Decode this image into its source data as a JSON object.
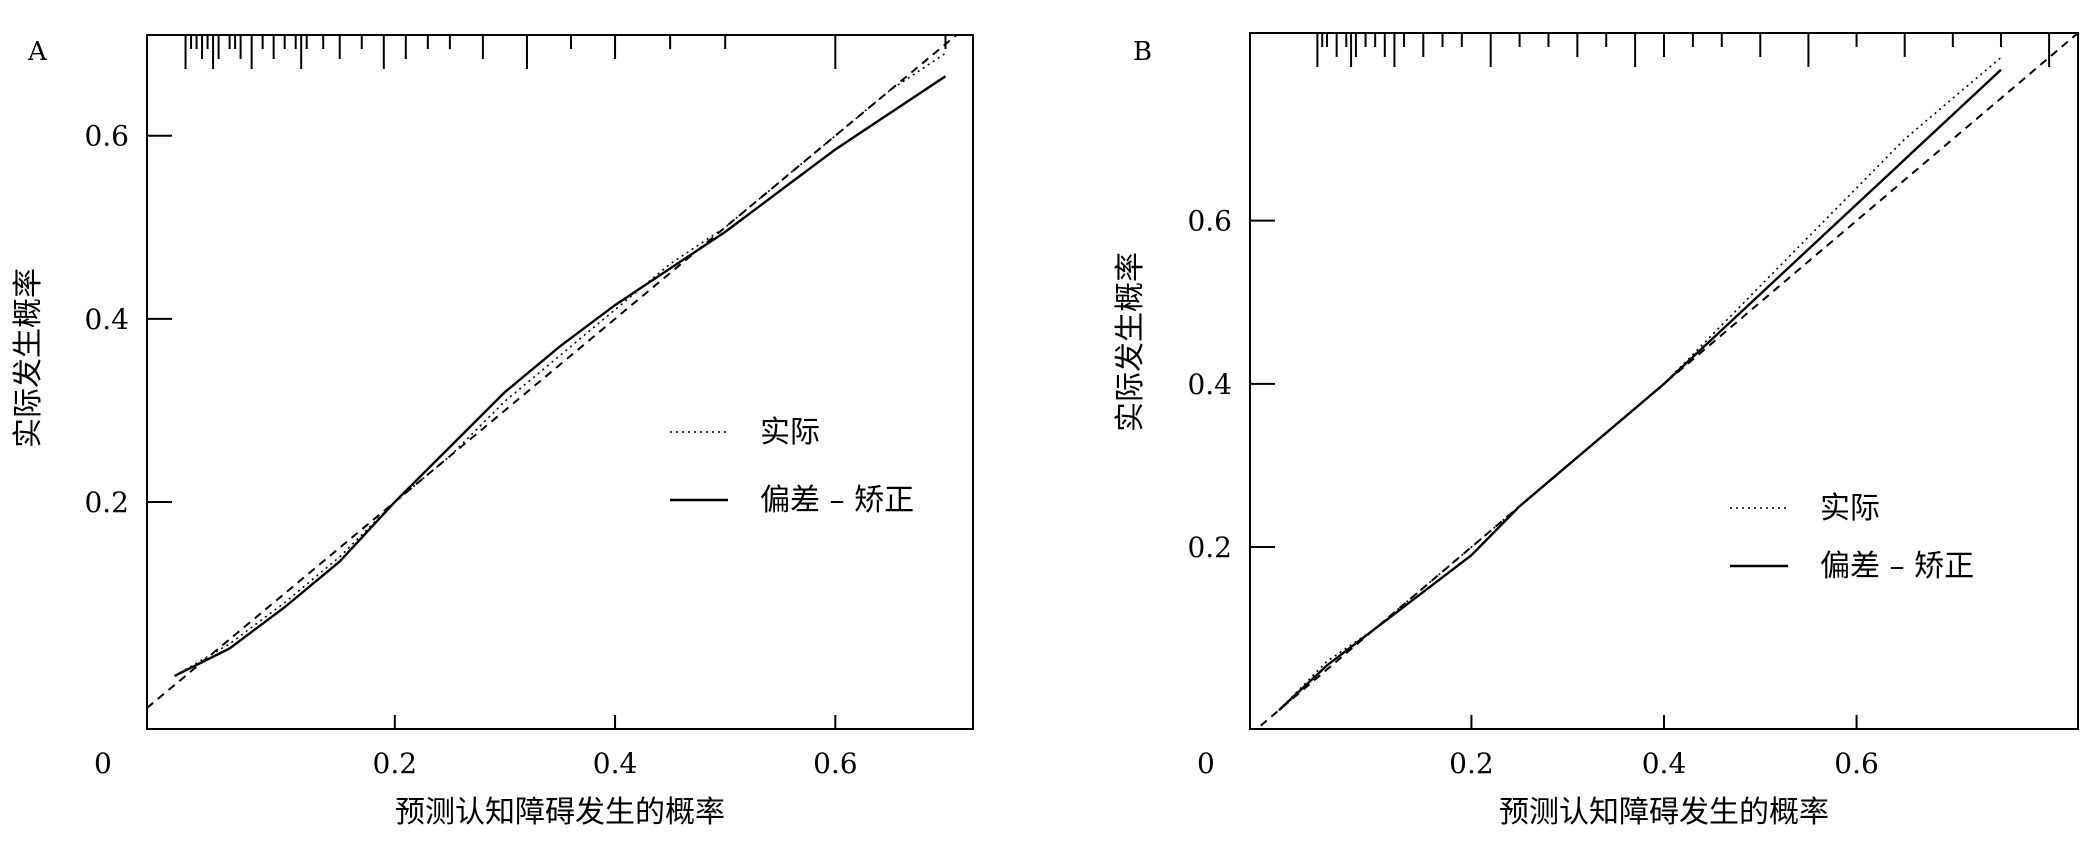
{
  "chart_data": [
    {
      "panel_label": "A",
      "type": "line",
      "xlabel": "预测认知障碍发生的概率",
      "ylabel": "实际发生概率",
      "origin_label": "0",
      "xlim": [
        -0.025,
        0.725
      ],
      "ylim": [
        -0.048,
        0.71
      ],
      "x_ticks": [
        0.2,
        0.4,
        0.6
      ],
      "x_tick_labels": [
        "0.2",
        "0.4",
        "0.6"
      ],
      "y_ticks": [
        0.2,
        0.4,
        0.6
      ],
      "y_tick_labels": [
        "0.2",
        "0.4",
        "0.6"
      ],
      "grid": false,
      "legend_position": "center-right",
      "series": [
        {
          "name": "实际",
          "style": "dotted",
          "x": [
            0.0,
            0.05,
            0.1,
            0.15,
            0.2,
            0.25,
            0.3,
            0.35,
            0.4,
            0.45,
            0.5,
            0.55,
            0.6,
            0.65,
            0.7
          ],
          "y": [
            0.01,
            0.045,
            0.09,
            0.14,
            0.2,
            0.25,
            0.31,
            0.36,
            0.41,
            0.46,
            0.5,
            0.55,
            0.6,
            0.65,
            0.69
          ]
        },
        {
          "name": "偏差 – 矫正",
          "style": "solid",
          "x": [
            0.0,
            0.05,
            0.1,
            0.15,
            0.2,
            0.25,
            0.3,
            0.35,
            0.4,
            0.45,
            0.5,
            0.55,
            0.6,
            0.65,
            0.7
          ],
          "y": [
            0.01,
            0.04,
            0.085,
            0.135,
            0.2,
            0.26,
            0.32,
            0.37,
            0.415,
            0.455,
            0.495,
            0.54,
            0.585,
            0.625,
            0.665
          ]
        }
      ],
      "reference_line": {
        "style": "dashed",
        "slope": 1,
        "intercept": 0
      },
      "rug": [
        0.01,
        0.015,
        0.02,
        0.025,
        0.03,
        0.035,
        0.04,
        0.05,
        0.055,
        0.06,
        0.07,
        0.08,
        0.09,
        0.1,
        0.11,
        0.115,
        0.12,
        0.135,
        0.15,
        0.17,
        0.19,
        0.21,
        0.23,
        0.25,
        0.28,
        0.32,
        0.36,
        0.4,
        0.45,
        0.5,
        0.6,
        0.7
      ]
    },
    {
      "panel_label": "B",
      "type": "line",
      "xlabel": "预测认知障碍发生的概率",
      "ylabel": "实际发生概率",
      "origin_label": "0",
      "xlim": [
        -0.03,
        0.83
      ],
      "ylim": [
        -0.023,
        0.83
      ],
      "x_ticks": [
        0.2,
        0.4,
        0.6
      ],
      "x_tick_labels": [
        "0.2",
        "0.4",
        "0.6"
      ],
      "y_ticks": [
        0.2,
        0.4,
        0.6
      ],
      "y_tick_labels": [
        "0.2",
        "0.4",
        "0.6"
      ],
      "grid": false,
      "legend_position": "lower-right",
      "series": [
        {
          "name": "实际",
          "style": "dotted",
          "x": [
            0.0,
            0.05,
            0.1,
            0.15,
            0.2,
            0.25,
            0.3,
            0.35,
            0.4,
            0.45,
            0.5,
            0.55,
            0.6,
            0.65,
            0.7,
            0.75
          ],
          "y": [
            0.0,
            0.06,
            0.1,
            0.15,
            0.2,
            0.25,
            0.3,
            0.35,
            0.4,
            0.46,
            0.52,
            0.58,
            0.64,
            0.7,
            0.75,
            0.8
          ]
        },
        {
          "name": "偏差 – 矫正",
          "style": "solid",
          "x": [
            0.0,
            0.05,
            0.1,
            0.15,
            0.2,
            0.25,
            0.3,
            0.35,
            0.4,
            0.45,
            0.5,
            0.55,
            0.6,
            0.65,
            0.7,
            0.75
          ],
          "y": [
            0.0,
            0.055,
            0.1,
            0.145,
            0.19,
            0.25,
            0.3,
            0.35,
            0.4,
            0.455,
            0.51,
            0.565,
            0.62,
            0.675,
            0.73,
            0.785
          ]
        }
      ],
      "reference_line": {
        "style": "dashed",
        "slope": 1,
        "intercept": 0
      },
      "rug": [
        0.04,
        0.045,
        0.05,
        0.06,
        0.07,
        0.075,
        0.08,
        0.09,
        0.1,
        0.11,
        0.12,
        0.13,
        0.15,
        0.17,
        0.19,
        0.22,
        0.25,
        0.28,
        0.31,
        0.34,
        0.37,
        0.4,
        0.43,
        0.46,
        0.5,
        0.55,
        0.6,
        0.65,
        0.7,
        0.75,
        0.8
      ]
    }
  ]
}
